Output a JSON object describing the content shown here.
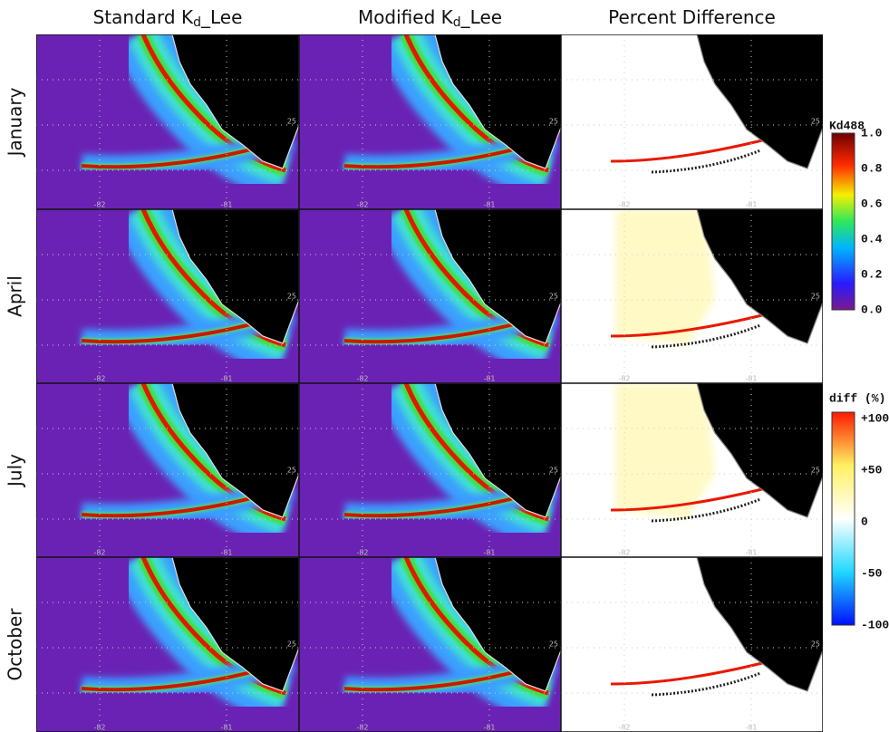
{
  "columns": [
    {
      "main": "Standard K",
      "sub": "d",
      "rest": "_Lee"
    },
    {
      "main": "Modified K",
      "sub": "d",
      "rest": "_Lee"
    },
    {
      "main": "Percent Difference"
    }
  ],
  "rows": [
    "January",
    "April",
    "July",
    "October"
  ],
  "map_axes": {
    "lon_labels": [
      "-82",
      "-81"
    ],
    "lat_label": "25"
  },
  "colorbars": [
    {
      "title": "Kd488",
      "labels": [
        "1.0",
        "0.8",
        "0.6",
        "0.4",
        "0.2",
        "0.0"
      ]
    },
    {
      "title": "diff (%)",
      "labels": [
        "+100",
        "+50",
        "0",
        "-50",
        "-100"
      ]
    }
  ]
}
